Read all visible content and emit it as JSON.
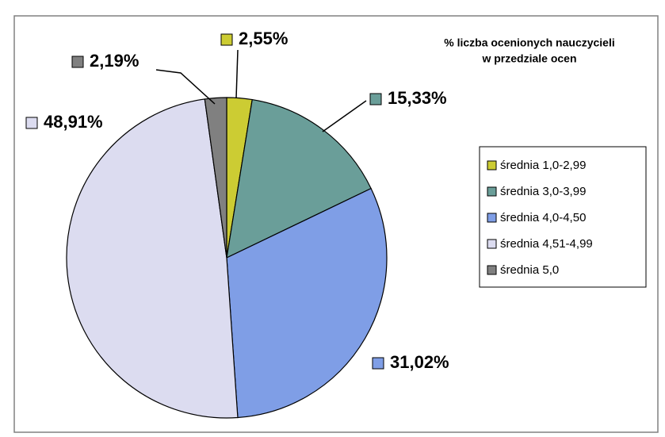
{
  "chart_data": {
    "type": "pie",
    "title": [
      "% liczba ocenionych  nauczycieli",
      "w przedziale ocen"
    ],
    "categories": [
      "średnia 1,0-2,99",
      "średnia 3,0-3,99",
      "średnia 4,0-4,50",
      "średnia 4,51-4,99",
      "średnia 5,0"
    ],
    "values": [
      2.55,
      15.33,
      31.02,
      48.91,
      2.19
    ],
    "value_labels": [
      "2,55%",
      "15,33%",
      "31,02%",
      "48,91%",
      "2,19%"
    ],
    "colors": [
      "#cccc33",
      "#6a9e99",
      "#7f9ee6",
      "#dcdcf0",
      "#808080"
    ],
    "legend": "right"
  }
}
